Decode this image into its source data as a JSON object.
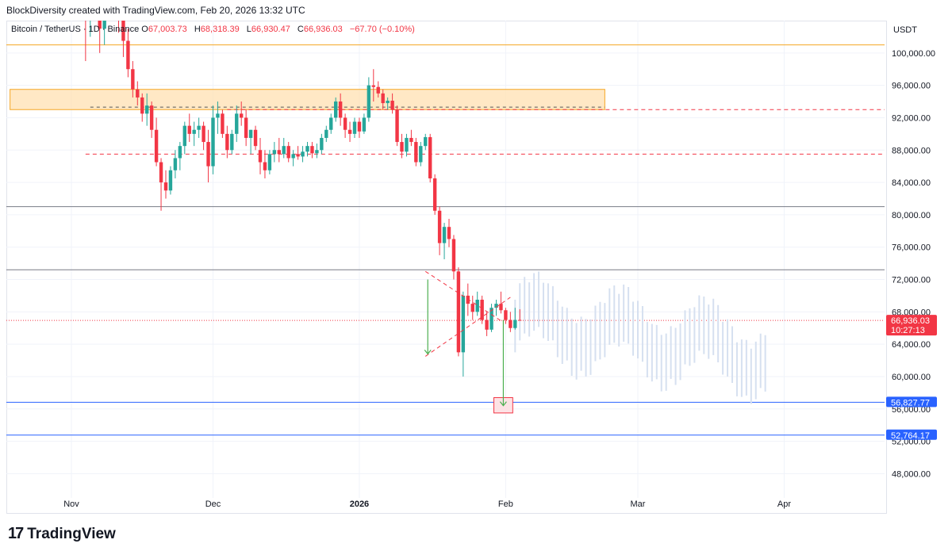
{
  "header": {
    "created_by": "BlockDiversity created with TradingView.com, Feb 20, 2026 13:32 UTC"
  },
  "legend": {
    "symbol": "Bitcoin / TetherUS · 1D · Binance",
    "open_label": "O",
    "open": "67,003.73",
    "high_label": "H",
    "high": "68,318.39",
    "low_label": "L",
    "low": "66,930.47",
    "close_label": "C",
    "close": "66,936.03",
    "change": "−67.70 (−0.10%)"
  },
  "currency": "USDT",
  "footer": {
    "logo_mark": "17",
    "brand": "TradingView"
  },
  "colors": {
    "up": "#26a69a",
    "down": "#f23645",
    "zone_fill": "#ffe0b2",
    "zone_border": "#f5a623",
    "blue_line": "#2962ff",
    "gray_line": "#787b86",
    "pink_dash": "#f23645",
    "forecast": "#d6e0f0"
  },
  "chart_data": {
    "type": "candlestick",
    "y_axis": {
      "ylim": [
        45000,
        104000
      ],
      "ticks": [
        "48,000.00",
        "52,000.00",
        "56,000.00",
        "60,000.00",
        "64,000.00",
        "68,000.00",
        "72,000.00",
        "76,000.00",
        "80,000.00",
        "84,000.00",
        "88,000.00",
        "92,000.00",
        "96,000.00",
        "100,000.00"
      ]
    },
    "x_axis": {
      "labels": [
        {
          "label": "Nov",
          "day": 0
        },
        {
          "label": "Dec",
          "day": 30
        },
        {
          "label": "2026",
          "day": 61
        },
        {
          "label": "Feb",
          "day": 92
        },
        {
          "label": "Mar",
          "day": 120
        },
        {
          "label": "Apr",
          "day": 151
        }
      ]
    },
    "price_badges": [
      {
        "price": 66936.03,
        "label": "66,936.03",
        "sub": "10:27:13",
        "color": "#f23645"
      },
      {
        "price": 56827.77,
        "label": "56,827.77",
        "color": "#2962ff"
      },
      {
        "price": 52764.17,
        "label": "52,764.17",
        "color": "#2962ff"
      }
    ],
    "levels": [
      {
        "price": 101000,
        "style": "orange"
      },
      {
        "price": 81000,
        "style": "gray"
      },
      {
        "price": 73200,
        "style": "gray"
      },
      {
        "price": 56827.77,
        "style": "blue"
      },
      {
        "price": 52764.17,
        "style": "blue"
      },
      {
        "price": 93000,
        "style": "pink-dash",
        "from_day": 33
      },
      {
        "price": 87500,
        "style": "pink-dash",
        "from_day": 3
      }
    ],
    "zones": [
      {
        "from_price": 93000,
        "to_price": 95500,
        "from_day": -13,
        "to_day": 113
      }
    ],
    "candles": [
      [
        110000,
        110500,
        99000,
        104000
      ],
      [
        104000,
        110000,
        102000,
        109000
      ],
      [
        109000,
        111000,
        104000,
        105000
      ],
      [
        105000,
        107000,
        100000,
        103000
      ],
      [
        103000,
        108000,
        101000,
        106500
      ],
      [
        106500,
        110000,
        104000,
        109500
      ],
      [
        109500,
        110000,
        104500,
        105500
      ],
      [
        105500,
        107000,
        102500,
        104000
      ],
      [
        104000,
        105000,
        99500,
        101500
      ],
      [
        101500,
        103000,
        97000,
        98000
      ],
      [
        98000,
        99000,
        94500,
        95500
      ],
      [
        95500,
        96500,
        93500,
        94500
      ],
      [
        94500,
        95000,
        91500,
        92500
      ],
      [
        92500,
        95000,
        91000,
        93500
      ],
      [
        93500,
        94000,
        89500,
        90500
      ],
      [
        90500,
        92000,
        86000,
        86500
      ],
      [
        86500,
        87000,
        80500,
        84000
      ],
      [
        84000,
        85500,
        82000,
        83000
      ],
      [
        83000,
        86000,
        82500,
        85500
      ],
      [
        85500,
        88000,
        84500,
        87000
      ],
      [
        87000,
        89000,
        85500,
        88500
      ],
      [
        88500,
        91500,
        87500,
        91000
      ],
      [
        91000,
        92500,
        89000,
        90000
      ],
      [
        90000,
        91500,
        88500,
        90500
      ],
      [
        90500,
        92000,
        89500,
        91000
      ],
      [
        91000,
        91500,
        88000,
        89000
      ],
      [
        89000,
        90500,
        84000,
        86000
      ],
      [
        86000,
        93500,
        85000,
        92000
      ],
      [
        92000,
        94000,
        90000,
        92500
      ],
      [
        92500,
        93000,
        89500,
        90000
      ],
      [
        90000,
        91000,
        87000,
        88000
      ],
      [
        88000,
        90500,
        87500,
        90000
      ],
      [
        90000,
        93500,
        89000,
        92500
      ],
      [
        92500,
        94000,
        91000,
        92000
      ],
      [
        92000,
        93000,
        88500,
        89500
      ],
      [
        89500,
        90500,
        87500,
        90500
      ],
      [
        90500,
        91000,
        88000,
        88500
      ],
      [
        88000,
        89500,
        85000,
        86500
      ],
      [
        86500,
        88000,
        84500,
        85500
      ],
      [
        85500,
        88000,
        85000,
        87500
      ],
      [
        87500,
        89000,
        86500,
        88000
      ],
      [
        88000,
        89500,
        86500,
        87500
      ],
      [
        87500,
        89500,
        87000,
        88500
      ],
      [
        88500,
        89000,
        86500,
        87000
      ],
      [
        87000,
        88000,
        86000,
        87500
      ],
      [
        87500,
        88500,
        86800,
        87200
      ],
      [
        87200,
        88500,
        86500,
        87800
      ],
      [
        87800,
        89000,
        87200,
        88500
      ],
      [
        88500,
        89000,
        87000,
        87600
      ],
      [
        87600,
        88800,
        87000,
        88000
      ],
      [
        88000,
        90000,
        87500,
        89500
      ],
      [
        89500,
        91000,
        89000,
        90500
      ],
      [
        90500,
        92500,
        90000,
        92000
      ],
      [
        92000,
        94500,
        91500,
        94000
      ],
      [
        94000,
        95000,
        91000,
        92000
      ],
      [
        92000,
        92500,
        89500,
        90500
      ],
      [
        90500,
        91500,
        89000,
        90000
      ],
      [
        90000,
        92000,
        89500,
        91500
      ],
      [
        91500,
        92000,
        89500,
        90300
      ],
      [
        90300,
        92500,
        90000,
        92000
      ],
      [
        92000,
        97000,
        91500,
        96000
      ],
      [
        96000,
        98000,
        94000,
        95800
      ],
      [
        95800,
        96500,
        94500,
        95000
      ],
      [
        95000,
        95500,
        93000,
        93800
      ],
      [
        93800,
        94500,
        93000,
        94100
      ],
      [
        94100,
        95000,
        92500,
        93000
      ],
      [
        93000,
        93500,
        88500,
        89000
      ],
      [
        89000,
        90000,
        87000,
        87800
      ],
      [
        87800,
        90000,
        87200,
        89500
      ],
      [
        89500,
        90500,
        88500,
        89000
      ],
      [
        89000,
        89500,
        86000,
        86500
      ],
      [
        86500,
        89000,
        86000,
        88500
      ],
      [
        88500,
        90000,
        88000,
        89600
      ],
      [
        89600,
        90000,
        84000,
        84500
      ],
      [
        84500,
        85000,
        80000,
        80500
      ],
      [
        80500,
        81000,
        75000,
        76500
      ],
      [
        76500,
        79000,
        74500,
        78500
      ],
      [
        78500,
        79500,
        76000,
        77000
      ],
      [
        77000,
        77500,
        72000,
        73000
      ],
      [
        73000,
        73500,
        62500,
        63000
      ],
      [
        63000,
        70500,
        60000,
        70000
      ],
      [
        70000,
        71500,
        67500,
        69000
      ],
      [
        69000,
        70000,
        67000,
        68000
      ],
      [
        68000,
        70500,
        67500,
        69500
      ],
      [
        69500,
        70000,
        66500,
        67000
      ],
      [
        67000,
        68000,
        65000,
        65800
      ],
      [
        65800,
        69000,
        65500,
        68500
      ],
      [
        68500,
        69500,
        67500,
        69000
      ],
      [
        69000,
        70500,
        67800,
        68200
      ],
      [
        68200,
        68500,
        66500,
        67000
      ],
      [
        67000,
        68000,
        65500,
        66000
      ],
      [
        66000,
        68500,
        65800,
        67000
      ],
      [
        67000,
        68318,
        66930,
        66936
      ]
    ],
    "triangle": {
      "upper": {
        "from_day": 75,
        "from_price": 73000,
        "to_day": 91,
        "to_price": 66900
      },
      "lower": {
        "from_day": 75,
        "from_price": 62500,
        "to_day": 93,
        "to_price": 69800
      }
    },
    "arrows": [
      {
        "day": 75.5,
        "from_price": 72000,
        "to_price": 62800
      },
      {
        "day": 91.5,
        "from_price": 67000,
        "to_price": 56400
      }
    ],
    "target_box": {
      "from_day": 89.5,
      "to_day": 93.5,
      "from_price": 55500,
      "to_price": 57400
    },
    "current_price": 66936.03
  }
}
